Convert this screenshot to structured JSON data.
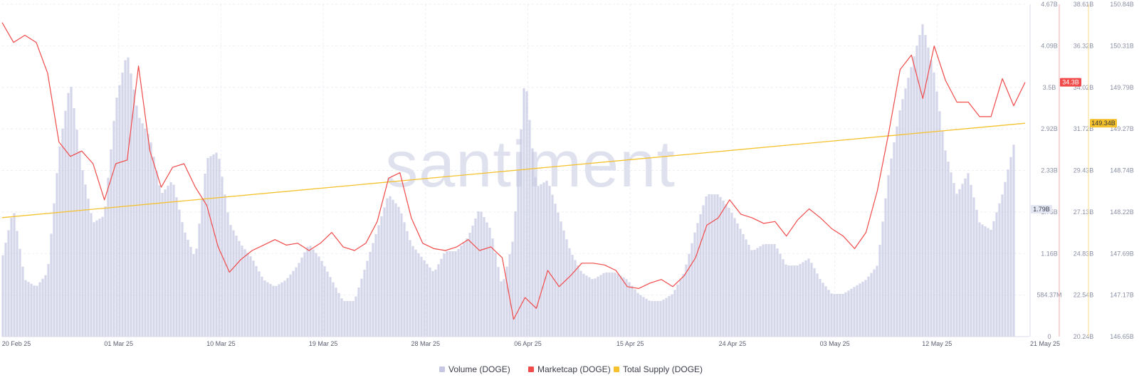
{
  "chart_data": {
    "type": "area",
    "watermark": "santiment",
    "x_start": "2025-02-20",
    "x_end": "2025-05-21",
    "x_ticks": [
      "20 Feb 25",
      "01 Mar 25",
      "10 Mar 25",
      "19 Mar 25",
      "28 Mar 25",
      "06 Apr 25",
      "15 Apr 25",
      "24 Apr 25",
      "03 May 25",
      "12 May 25",
      "21 May 25"
    ],
    "grid": true,
    "axes": {
      "volume": {
        "ticks": [
          "4.67B",
          "4.09B",
          "3.5B",
          "2.92B",
          "2.33B",
          "1.75B",
          "1.16B",
          "584.37M",
          "0"
        ],
        "range": [
          0,
          4.67
        ],
        "unit": "B",
        "current_label": "1.79B",
        "current_value": 1.79
      },
      "marketcap": {
        "ticks": [
          "38.61B",
          "36.32B",
          "34.02B",
          "31.72B",
          "29.43B",
          "27.13B",
          "24.83B",
          "22.54B",
          "20.24B"
        ],
        "range": [
          20.24,
          38.61
        ],
        "unit": "B",
        "color": "#f04a4a",
        "current_label": "34.3B",
        "current_value": 34.3
      },
      "supply": {
        "ticks": [
          "150.84B",
          "150.31B",
          "149.79B",
          "149.27B",
          "148.74B",
          "148.22B",
          "147.69B",
          "147.17B",
          "146.65B"
        ],
        "range": [
          146.65,
          150.84
        ],
        "unit": "B",
        "color": "#f5c12e",
        "current_label": "149.34B",
        "current_value": 149.34
      }
    },
    "series": [
      {
        "name": "Volume (DOGE)",
        "axis": "volume",
        "kind": "bar",
        "color": "#c5c8e2",
        "points": [
          [
            "2025-02-20",
            1.1
          ],
          [
            "2025-02-21",
            1.8
          ],
          [
            "2025-02-22",
            0.8
          ],
          [
            "2025-02-23",
            0.7
          ],
          [
            "2025-02-24",
            0.9
          ],
          [
            "2025-02-25",
            2.6
          ],
          [
            "2025-02-26",
            3.6
          ],
          [
            "2025-02-27",
            2.4
          ],
          [
            "2025-02-28",
            1.6
          ],
          [
            "2025-03-01",
            1.7
          ],
          [
            "2025-03-02",
            3.3
          ],
          [
            "2025-03-03",
            4.0
          ],
          [
            "2025-03-04",
            3.1
          ],
          [
            "2025-03-05",
            2.8
          ],
          [
            "2025-03-06",
            2.0
          ],
          [
            "2025-03-07",
            2.2
          ],
          [
            "2025-03-08",
            1.5
          ],
          [
            "2025-03-09",
            1.1
          ],
          [
            "2025-03-10",
            2.5
          ],
          [
            "2025-03-11",
            2.6
          ],
          [
            "2025-03-12",
            1.6
          ],
          [
            "2025-03-13",
            1.3
          ],
          [
            "2025-03-14",
            1.1
          ],
          [
            "2025-03-15",
            0.8
          ],
          [
            "2025-03-16",
            0.7
          ],
          [
            "2025-03-17",
            0.8
          ],
          [
            "2025-03-18",
            1.0
          ],
          [
            "2025-03-19",
            1.3
          ],
          [
            "2025-03-20",
            1.1
          ],
          [
            "2025-03-21",
            0.8
          ],
          [
            "2025-03-22",
            0.5
          ],
          [
            "2025-03-23",
            0.5
          ],
          [
            "2025-03-24",
            1.0
          ],
          [
            "2025-03-25",
            1.5
          ],
          [
            "2025-03-26",
            2.0
          ],
          [
            "2025-03-27",
            1.8
          ],
          [
            "2025-03-28",
            1.3
          ],
          [
            "2025-03-29",
            1.1
          ],
          [
            "2025-03-30",
            0.9
          ],
          [
            "2025-03-31",
            1.2
          ],
          [
            "2025-04-01",
            1.2
          ],
          [
            "2025-04-02",
            1.4
          ],
          [
            "2025-04-03",
            1.8
          ],
          [
            "2025-04-04",
            1.5
          ],
          [
            "2025-04-05",
            0.7
          ],
          [
            "2025-04-06",
            1.4
          ],
          [
            "2025-04-07",
            3.7
          ],
          [
            "2025-04-08",
            2.1
          ],
          [
            "2025-04-09",
            2.2
          ],
          [
            "2025-04-10",
            1.7
          ],
          [
            "2025-04-11",
            1.2
          ],
          [
            "2025-04-12",
            0.9
          ],
          [
            "2025-04-13",
            0.8
          ],
          [
            "2025-04-14",
            0.9
          ],
          [
            "2025-04-15",
            0.9
          ],
          [
            "2025-04-16",
            0.8
          ],
          [
            "2025-04-17",
            0.6
          ],
          [
            "2025-04-18",
            0.5
          ],
          [
            "2025-04-19",
            0.5
          ],
          [
            "2025-04-20",
            0.6
          ],
          [
            "2025-04-21",
            0.9
          ],
          [
            "2025-04-22",
            1.5
          ],
          [
            "2025-04-23",
            2.0
          ],
          [
            "2025-04-24",
            2.0
          ],
          [
            "2025-04-25",
            1.8
          ],
          [
            "2025-04-26",
            1.5
          ],
          [
            "2025-04-27",
            1.2
          ],
          [
            "2025-04-28",
            1.3
          ],
          [
            "2025-04-29",
            1.3
          ],
          [
            "2025-04-30",
            1.0
          ],
          [
            "2025-05-01",
            1.0
          ],
          [
            "2025-05-02",
            1.1
          ],
          [
            "2025-05-03",
            0.8
          ],
          [
            "2025-05-04",
            0.6
          ],
          [
            "2025-05-05",
            0.6
          ],
          [
            "2025-05-06",
            0.7
          ],
          [
            "2025-05-07",
            0.8
          ],
          [
            "2025-05-08",
            1.0
          ],
          [
            "2025-05-09",
            2.3
          ],
          [
            "2025-05-10",
            3.2
          ],
          [
            "2025-05-11",
            3.8
          ],
          [
            "2025-05-12",
            4.4
          ],
          [
            "2025-05-13",
            3.7
          ],
          [
            "2025-05-14",
            2.6
          ],
          [
            "2025-05-15",
            2.0
          ],
          [
            "2025-05-16",
            2.3
          ],
          [
            "2025-05-17",
            1.6
          ],
          [
            "2025-05-18",
            1.5
          ],
          [
            "2025-05-19",
            2.0
          ],
          [
            "2025-05-20",
            2.7
          ],
          [
            "2025-05-21",
            1.8
          ]
        ]
      },
      {
        "name": "Marketcap (DOGE)",
        "axis": "marketcap",
        "kind": "line",
        "color": "#f04a4a",
        "points": [
          [
            "2025-02-20",
            37.6
          ],
          [
            "2025-02-21",
            36.5
          ],
          [
            "2025-02-22",
            36.9
          ],
          [
            "2025-02-23",
            36.5
          ],
          [
            "2025-02-24",
            34.8
          ],
          [
            "2025-02-25",
            31.0
          ],
          [
            "2025-02-26",
            30.2
          ],
          [
            "2025-02-27",
            30.5
          ],
          [
            "2025-02-28",
            29.8
          ],
          [
            "2025-03-01",
            27.8
          ],
          [
            "2025-03-02",
            29.8
          ],
          [
            "2025-03-03",
            30.0
          ],
          [
            "2025-03-04",
            35.2
          ],
          [
            "2025-03-05",
            30.5
          ],
          [
            "2025-03-06",
            28.5
          ],
          [
            "2025-03-07",
            29.6
          ],
          [
            "2025-03-08",
            29.8
          ],
          [
            "2025-03-09",
            28.5
          ],
          [
            "2025-03-10",
            27.5
          ],
          [
            "2025-03-11",
            25.2
          ],
          [
            "2025-03-12",
            23.8
          ],
          [
            "2025-03-13",
            24.5
          ],
          [
            "2025-03-14",
            25.0
          ],
          [
            "2025-03-15",
            25.3
          ],
          [
            "2025-03-16",
            25.6
          ],
          [
            "2025-03-17",
            25.3
          ],
          [
            "2025-03-18",
            25.4
          ],
          [
            "2025-03-19",
            25.0
          ],
          [
            "2025-03-20",
            25.4
          ],
          [
            "2025-03-21",
            26.0
          ],
          [
            "2025-03-22",
            25.2
          ],
          [
            "2025-03-23",
            25.0
          ],
          [
            "2025-03-24",
            25.4
          ],
          [
            "2025-03-25",
            26.6
          ],
          [
            "2025-03-26",
            29.0
          ],
          [
            "2025-03-27",
            29.3
          ],
          [
            "2025-03-28",
            26.8
          ],
          [
            "2025-03-29",
            25.4
          ],
          [
            "2025-03-30",
            25.1
          ],
          [
            "2025-03-31",
            25.0
          ],
          [
            "2025-04-01",
            25.2
          ],
          [
            "2025-04-02",
            25.6
          ],
          [
            "2025-04-03",
            25.0
          ],
          [
            "2025-04-04",
            25.2
          ],
          [
            "2025-04-05",
            24.6
          ],
          [
            "2025-04-06",
            21.2
          ],
          [
            "2025-04-07",
            22.4
          ],
          [
            "2025-04-08",
            21.8
          ],
          [
            "2025-04-09",
            23.9
          ],
          [
            "2025-04-10",
            23.0
          ],
          [
            "2025-04-11",
            23.6
          ],
          [
            "2025-04-12",
            24.3
          ],
          [
            "2025-04-13",
            24.3
          ],
          [
            "2025-04-14",
            24.2
          ],
          [
            "2025-04-15",
            23.9
          ],
          [
            "2025-04-16",
            23.0
          ],
          [
            "2025-04-17",
            22.9
          ],
          [
            "2025-04-18",
            23.2
          ],
          [
            "2025-04-19",
            23.4
          ],
          [
            "2025-04-20",
            23.0
          ],
          [
            "2025-04-21",
            23.6
          ],
          [
            "2025-04-22",
            24.6
          ],
          [
            "2025-04-23",
            26.4
          ],
          [
            "2025-04-24",
            26.8
          ],
          [
            "2025-04-25",
            27.8
          ],
          [
            "2025-04-26",
            27.0
          ],
          [
            "2025-04-27",
            26.8
          ],
          [
            "2025-04-28",
            26.5
          ],
          [
            "2025-04-29",
            26.6
          ],
          [
            "2025-04-30",
            25.8
          ],
          [
            "2025-05-01",
            26.7
          ],
          [
            "2025-05-02",
            27.3
          ],
          [
            "2025-05-03",
            26.8
          ],
          [
            "2025-05-04",
            26.2
          ],
          [
            "2025-05-05",
            25.8
          ],
          [
            "2025-05-06",
            25.1
          ],
          [
            "2025-05-07",
            26.0
          ],
          [
            "2025-05-08",
            28.3
          ],
          [
            "2025-05-09",
            31.5
          ],
          [
            "2025-05-10",
            35.0
          ],
          [
            "2025-05-11",
            35.8
          ],
          [
            "2025-05-12",
            33.4
          ],
          [
            "2025-05-13",
            36.3
          ],
          [
            "2025-05-14",
            34.4
          ],
          [
            "2025-05-15",
            33.2
          ],
          [
            "2025-05-16",
            33.2
          ],
          [
            "2025-05-17",
            32.4
          ],
          [
            "2025-05-18",
            32.4
          ],
          [
            "2025-05-19",
            34.5
          ],
          [
            "2025-05-20",
            33.0
          ],
          [
            "2025-05-21",
            34.3
          ]
        ]
      },
      {
        "name": "Total Supply (DOGE)",
        "axis": "supply",
        "kind": "line",
        "color": "#f5c12e",
        "points": [
          [
            "2025-02-20",
            148.15
          ],
          [
            "2025-05-21",
            149.34
          ]
        ]
      }
    ],
    "legend": {
      "placement": "bottom-center",
      "items": [
        "Volume (DOGE)",
        "Marketcap (DOGE)",
        "Total Supply (DOGE)"
      ]
    }
  }
}
